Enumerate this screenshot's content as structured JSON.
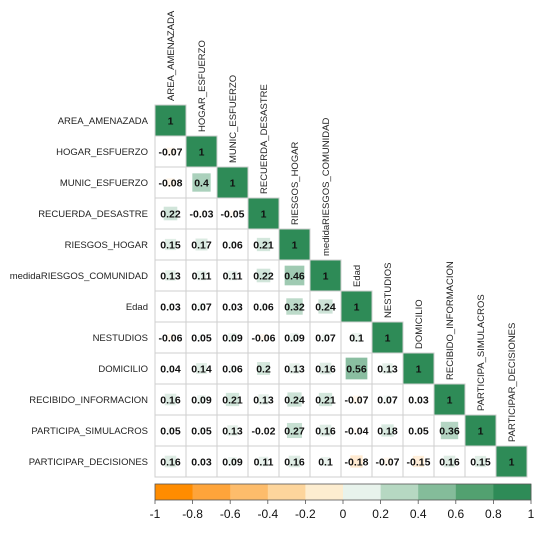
{
  "chart_data": {
    "type": "heatmap",
    "variables": [
      "AREA_AMENAZADA",
      "HOGAR_ESFUERZO",
      "MUNIC_ESFUERZO",
      "RECUERDA_DESASTRE",
      "RIESGOS_HOGAR",
      "medidaRIESGOS_COMUNIDAD",
      "Edad",
      "NESTUDIOS",
      "DOMICILIO",
      "RECIBIDO_INFORMACION",
      "PARTICIPA_SIMULACROS",
      "PARTICIPAR_DECISIONES"
    ],
    "matrix": [
      [
        "1"
      ],
      [
        "-0.07",
        "1"
      ],
      [
        "-0.08",
        "0.4",
        "1"
      ],
      [
        "0.22",
        "-0.03",
        "-0.05",
        "1"
      ],
      [
        "0.15",
        "0.17",
        "0.06",
        "0.21",
        "1"
      ],
      [
        "0.13",
        "0.11",
        "0.11",
        "0.22",
        "0.46",
        "1"
      ],
      [
        "0.03",
        "0.07",
        "0.03",
        "0.06",
        "0.32",
        "0.24",
        "1"
      ],
      [
        "-0.06",
        "0.05",
        "0.09",
        "-0.06",
        "0.09",
        "0.07",
        "0.1",
        "1"
      ],
      [
        "0.04",
        "0.14",
        "0.06",
        "0.2",
        "0.13",
        "0.16",
        "0.56",
        "0.13",
        "1"
      ],
      [
        "0.16",
        "0.09",
        "0.21",
        "0.13",
        "0.24",
        "0.21",
        "-0.07",
        "0.07",
        "0.03",
        "1"
      ],
      [
        "0.05",
        "0.05",
        "0.13",
        "-0.02",
        "0.27",
        "0.16",
        "-0.04",
        "0.18",
        "0.05",
        "0.36",
        "1"
      ],
      [
        "0.16",
        "0.03",
        "0.09",
        "0.11",
        "0.16",
        "0.1",
        "-0.18",
        "-0.07",
        "-0.15",
        "0.16",
        "0.15",
        "1"
      ]
    ],
    "colorbar": {
      "range": [
        -1,
        1
      ],
      "ticks": [
        "-1",
        "-0.8",
        "-0.6",
        "-0.4",
        "-0.2",
        "0",
        "0.2",
        "0.4",
        "0.6",
        "0.8",
        "1"
      ],
      "colors": [
        "#ff8c00",
        "#fea43a",
        "#fdbc6b",
        "#fdd59c",
        "#fdedd0",
        "#e8f3ec",
        "#b6d8c2",
        "#84bc9a",
        "#52a170",
        "#2e8b57"
      ]
    }
  }
}
